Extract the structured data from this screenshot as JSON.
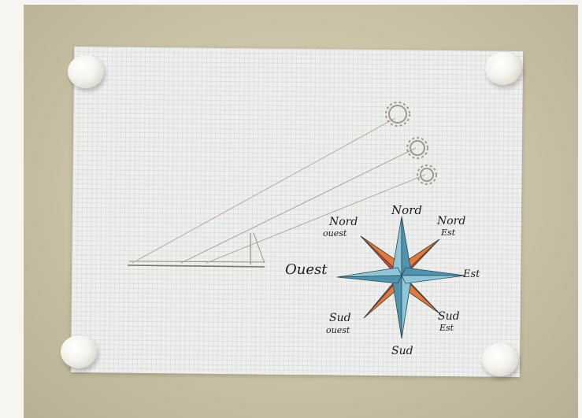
{
  "photo": {
    "subject": "Photo of a grid paper sheet held by four magnets, with a sun-angle sketch and a hand-drawn compass rose",
    "compass": {
      "nord": "Nord",
      "nord_ouest_1": "Nord",
      "nord_ouest_2": "ouest",
      "nord_est_1": "Nord",
      "nord_est_2": "Est",
      "ouest": "Ouest",
      "est": "Est",
      "sud_ouest_1": "Sud",
      "sud_ouest_2": "ouest",
      "sud_est_1": "Sud",
      "sud_est_2": "Est",
      "sud": "Sud"
    },
    "colors": {
      "star_blue": "#6aaec9",
      "star_orange": "#e07a3c",
      "star_red": "#c94a3a"
    }
  }
}
